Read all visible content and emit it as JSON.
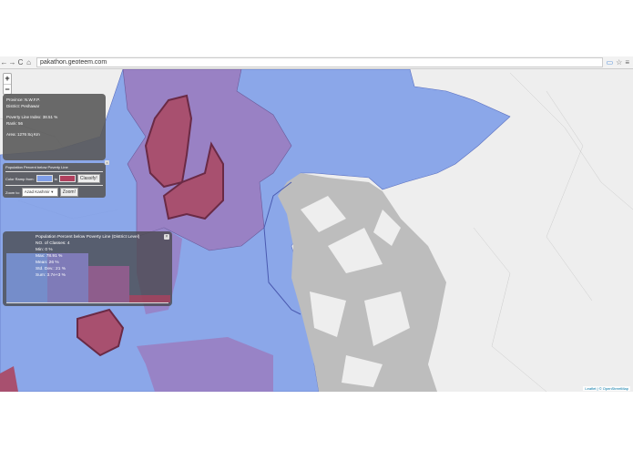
{
  "browser": {
    "url": "pakathon.geoteem.com"
  },
  "zoom": {
    "in": "+",
    "out": "−"
  },
  "info": {
    "province": "Province: N.W.F.P.",
    "district": "District: Peshawar",
    "poverty": "Poverty Line Index: 38.51 %",
    "rank": "Rank: 56",
    "area": "Area: 1276 Sq Km"
  },
  "controls": {
    "title": "Population Percent below Poverty Line",
    "ramp_label": "Color Ramp from:",
    "to_label": "to",
    "classify": "Classify!",
    "zoom_label": "Zoom to:",
    "zoom_value": "Azad Kashmir",
    "zoom_button": "Zoom!",
    "ramp_from": "#7f9ee8",
    "ramp_to": "#b0405e"
  },
  "stats": {
    "title": "Population Percent below Poverty Line (District Level)",
    "classes": "NO. of Classes: 4",
    "min": "Min: 0 %",
    "max": "Max: 78.91 %",
    "mean": "Mean: 26 %",
    "std": "Std. Dev.: 21 %",
    "sum": "Sum: 3.7e+3 %",
    "histogram": [
      {
        "color": "#7f9ee8",
        "level": 0.82
      },
      {
        "color": "#8c86d0",
        "level": 0.82
      },
      {
        "color": "#a05e95",
        "level": 0.6
      },
      {
        "color": "#b0405e",
        "level": 0.12
      }
    ]
  },
  "attribution": {
    "leaflet": "Leaflet",
    "osm": "| © OpenStreetMap"
  },
  "colors": {
    "blue": "#7f9ee8",
    "purple": "#9a7dc0",
    "red": "#a8506f",
    "gray": "#bdbdbd"
  }
}
